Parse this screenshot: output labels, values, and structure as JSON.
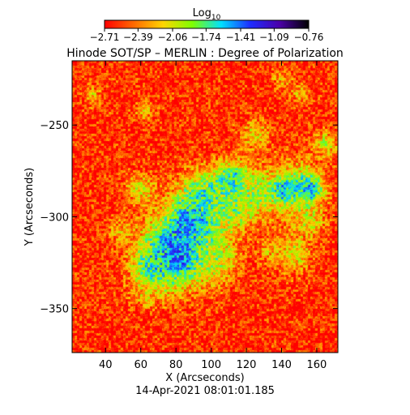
{
  "chart_data": {
    "type": "heatmap",
    "title": "Hinode SOT/SP – MERLIN : Degree of Polarization",
    "xlabel": "X (Arcseconds)",
    "ylabel": "Y (Arcseconds)",
    "xlim": [
      21,
      172
    ],
    "ylim": [
      -374,
      -215
    ],
    "x_ticks": [
      40,
      60,
      80,
      100,
      120,
      140,
      160
    ],
    "y_ticks": [
      -250,
      -300,
      -350
    ],
    "x_tick_labels": [
      "40",
      "60",
      "80",
      "100",
      "120",
      "140",
      "160"
    ],
    "y_tick_labels": [
      "−250",
      "−300",
      "−350"
    ],
    "timestamp": "14-Apr-2021 08:01:01.185",
    "colorbar": {
      "label_base": "Log",
      "label_sub": "10",
      "range": [
        -2.71,
        -0.76
      ],
      "ticks": [
        -2.71,
        -2.39,
        -2.06,
        -1.74,
        -1.41,
        -1.09,
        -0.76
      ],
      "tick_labels": [
        "−2.71",
        "−2.39",
        "−2.06",
        "−1.74",
        "−1.41",
        "−1.09",
        "−0.76"
      ],
      "colors": [
        "#ff0000",
        "#ff6a00",
        "#ffd400",
        "#7fff00",
        "#00e0ff",
        "#1e2cff",
        "#4b00a8",
        "#000000"
      ]
    },
    "background_level": -2.6,
    "features": [
      {
        "x": 84,
        "y": -322,
        "value": -0.85,
        "spread": 5
      },
      {
        "x": 80,
        "y": -318,
        "value": -1.25,
        "spread": 13
      },
      {
        "x": 90,
        "y": -302,
        "value": -1.3,
        "spread": 10
      },
      {
        "x": 68,
        "y": -328,
        "value": -1.6,
        "spread": 9
      },
      {
        "x": 100,
        "y": -322,
        "value": -1.9,
        "spread": 10
      },
      {
        "x": 96,
        "y": -288,
        "value": -1.7,
        "spread": 10
      },
      {
        "x": 112,
        "y": -280,
        "value": -1.45,
        "spread": 7
      },
      {
        "x": 113,
        "y": -296,
        "value": -1.8,
        "spread": 8
      },
      {
        "x": 126,
        "y": -287,
        "value": -1.9,
        "spread": 9
      },
      {
        "x": 141,
        "y": -285,
        "value": -1.0,
        "spread": 4
      },
      {
        "x": 155,
        "y": -285,
        "value": -1.1,
        "spread": 5
      },
      {
        "x": 148,
        "y": -285,
        "value": -1.7,
        "spread": 10
      },
      {
        "x": 155,
        "y": -302,
        "value": -2.0,
        "spread": 6
      },
      {
        "x": 147,
        "y": -320,
        "value": -2.0,
        "spread": 7
      },
      {
        "x": 60,
        "y": -285,
        "value": -2.0,
        "spread": 6
      },
      {
        "x": 125,
        "y": -255,
        "value": -2.1,
        "spread": 6
      },
      {
        "x": 165,
        "y": -260,
        "value": -2.0,
        "spread": 5
      },
      {
        "x": 32,
        "y": -233,
        "value": -2.2,
        "spread": 4
      },
      {
        "x": 62,
        "y": -242,
        "value": -2.2,
        "spread": 4
      },
      {
        "x": 140,
        "y": -225,
        "value": -2.2,
        "spread": 4
      },
      {
        "x": 150,
        "y": -233,
        "value": -2.2,
        "spread": 4
      },
      {
        "x": 48,
        "y": -308,
        "value": -2.2,
        "spread": 5
      },
      {
        "x": 62,
        "y": -342,
        "value": -2.2,
        "spread": 5
      },
      {
        "x": 133,
        "y": -318,
        "value": -2.2,
        "spread": 5
      }
    ]
  }
}
